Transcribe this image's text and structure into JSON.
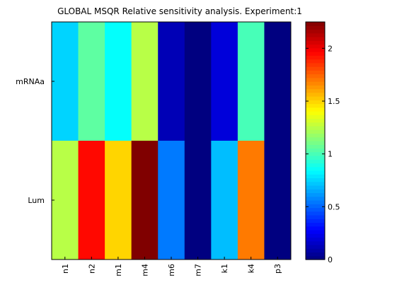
{
  "chart_data": {
    "type": "heatmap",
    "title": "GLOBAL MSQR Relative sensitivity analysis. Experiment:1",
    "xlabel": "",
    "ylabel": "",
    "x_categories": [
      "n1",
      "n2",
      "m1",
      "m4",
      "m6",
      "m7",
      "k1",
      "k4",
      "p3"
    ],
    "y_categories": [
      "mRNAa",
      "Lum"
    ],
    "values": [
      [
        0.75,
        1.05,
        0.85,
        1.25,
        0.12,
        0.0,
        0.2,
        1.0,
        0.0
      ],
      [
        1.25,
        1.95,
        1.5,
        2.25,
        0.55,
        0.0,
        0.7,
        1.7,
        0.0
      ]
    ],
    "colormap": "jet",
    "clim": [
      0,
      2.25
    ],
    "colorbar": {
      "ticks": [
        0,
        0.5,
        1,
        1.5,
        2
      ],
      "tick_labels": [
        "0",
        "0.5",
        "1",
        "1.5",
        "2"
      ]
    },
    "grid": false,
    "legend": "none"
  }
}
